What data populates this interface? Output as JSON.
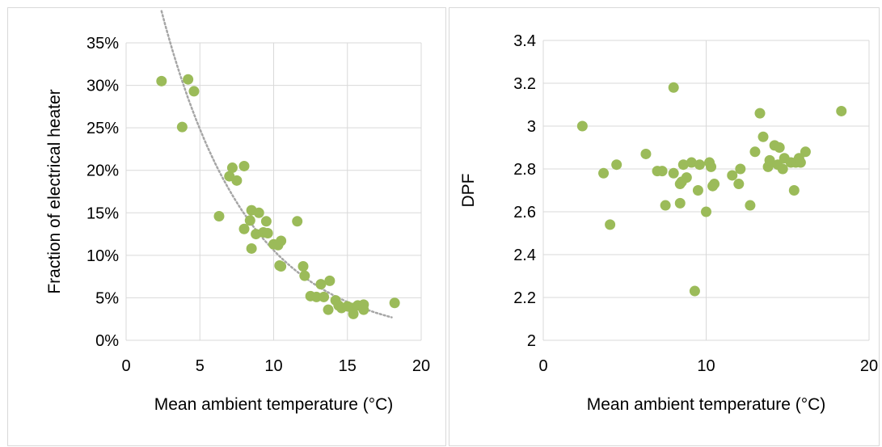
{
  "chart_data": [
    {
      "type": "scatter",
      "xlabel": "Mean ambient temperature (°C)",
      "ylabel": "Fraction of electrical heater",
      "xlim": [
        0,
        20
      ],
      "ylim": [
        0,
        0.35
      ],
      "x_ticks": [
        0,
        5,
        10,
        15,
        20
      ],
      "x_tick_labels": [
        "0",
        "5",
        "10",
        "15",
        "20"
      ],
      "y_ticks": [
        0,
        0.05,
        0.1,
        0.15,
        0.2,
        0.25,
        0.3,
        0.35
      ],
      "y_tick_labels": [
        "0%",
        "5%",
        "10%",
        "15%",
        "20%",
        "25%",
        "30%",
        "35%"
      ],
      "grid": true,
      "marker_color": "#9bbb59",
      "trendline": {
        "style": "dotted",
        "color": "#a6a6a6",
        "x_range": [
          2.4,
          18
        ]
      },
      "points": [
        [
          2.4,
          0.305
        ],
        [
          3.8,
          0.251
        ],
        [
          4.2,
          0.307
        ],
        [
          4.6,
          0.293
        ],
        [
          6.3,
          0.146
        ],
        [
          7.0,
          0.193
        ],
        [
          7.2,
          0.203
        ],
        [
          7.5,
          0.188
        ],
        [
          8.0,
          0.205
        ],
        [
          8.0,
          0.131
        ],
        [
          8.4,
          0.141
        ],
        [
          8.5,
          0.153
        ],
        [
          8.5,
          0.108
        ],
        [
          8.8,
          0.125
        ],
        [
          9.0,
          0.15
        ],
        [
          9.3,
          0.127
        ],
        [
          9.5,
          0.14
        ],
        [
          9.6,
          0.126
        ],
        [
          10.0,
          0.113
        ],
        [
          10.3,
          0.112
        ],
        [
          10.4,
          0.088
        ],
        [
          10.5,
          0.117
        ],
        [
          10.5,
          0.087
        ],
        [
          11.6,
          0.14
        ],
        [
          12.0,
          0.087
        ],
        [
          12.1,
          0.076
        ],
        [
          12.5,
          0.052
        ],
        [
          12.9,
          0.051
        ],
        [
          13.2,
          0.066
        ],
        [
          13.4,
          0.051
        ],
        [
          13.7,
          0.036
        ],
        [
          13.8,
          0.07
        ],
        [
          14.2,
          0.047
        ],
        [
          14.4,
          0.041
        ],
        [
          14.6,
          0.038
        ],
        [
          15.0,
          0.04
        ],
        [
          15.3,
          0.038
        ],
        [
          15.4,
          0.031
        ],
        [
          15.7,
          0.041
        ],
        [
          16.1,
          0.042
        ],
        [
          16.1,
          0.036
        ],
        [
          18.2,
          0.044
        ]
      ]
    },
    {
      "type": "scatter",
      "xlabel": "Mean ambient temperature (°C)",
      "ylabel": "DPF",
      "xlim": [
        0,
        20
      ],
      "ylim": [
        2,
        3.4
      ],
      "x_ticks": [
        0,
        10,
        20
      ],
      "x_tick_labels": [
        "0",
        "10",
        "20"
      ],
      "y_ticks": [
        2,
        2.2,
        2.4,
        2.6,
        2.8,
        3,
        3.2,
        3.4
      ],
      "y_tick_labels": [
        "2",
        "2.2",
        "2.4",
        "2.6",
        "2.8",
        "3",
        "3.2",
        "3.4"
      ],
      "grid": true,
      "marker_color": "#9bbb59",
      "points": [
        [
          2.4,
          3.0
        ],
        [
          3.7,
          2.78
        ],
        [
          4.1,
          2.54
        ],
        [
          4.5,
          2.82
        ],
        [
          6.3,
          2.87
        ],
        [
          7.0,
          2.79
        ],
        [
          7.3,
          2.79
        ],
        [
          7.5,
          2.63
        ],
        [
          8.0,
          3.18
        ],
        [
          8.0,
          2.78
        ],
        [
          8.4,
          2.64
        ],
        [
          8.4,
          2.73
        ],
        [
          8.5,
          2.74
        ],
        [
          8.6,
          2.82
        ],
        [
          8.8,
          2.76
        ],
        [
          9.1,
          2.83
        ],
        [
          9.3,
          2.23
        ],
        [
          9.5,
          2.7
        ],
        [
          9.6,
          2.82
        ],
        [
          10.0,
          2.6
        ],
        [
          10.2,
          2.83
        ],
        [
          10.3,
          2.81
        ],
        [
          10.4,
          2.72
        ],
        [
          10.5,
          2.73
        ],
        [
          11.6,
          2.77
        ],
        [
          12.0,
          2.73
        ],
        [
          12.1,
          2.8
        ],
        [
          12.7,
          2.63
        ],
        [
          13.0,
          2.88
        ],
        [
          13.3,
          3.06
        ],
        [
          13.5,
          2.95
        ],
        [
          13.8,
          2.81
        ],
        [
          13.9,
          2.84
        ],
        [
          14.2,
          2.91
        ],
        [
          14.4,
          2.82
        ],
        [
          14.5,
          2.9
        ],
        [
          14.7,
          2.8
        ],
        [
          14.8,
          2.85
        ],
        [
          15.2,
          2.83
        ],
        [
          15.4,
          2.7
        ],
        [
          15.5,
          2.83
        ],
        [
          15.7,
          2.85
        ],
        [
          15.8,
          2.83
        ],
        [
          16.1,
          2.88
        ],
        [
          18.3,
          3.07
        ]
      ]
    }
  ]
}
